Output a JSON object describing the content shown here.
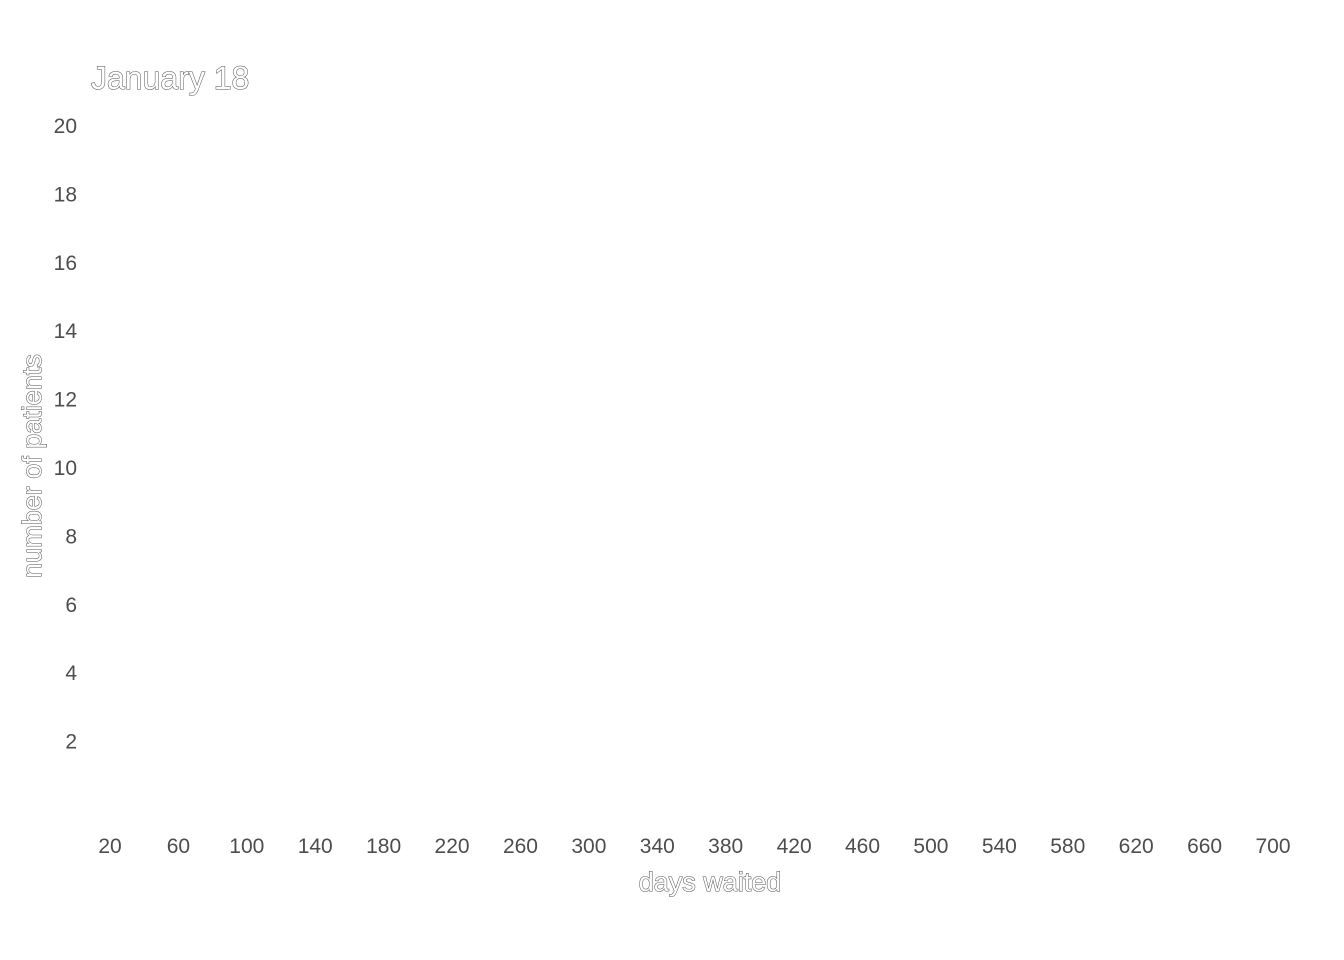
{
  "chart_data": {
    "type": "bar",
    "title": "January 18",
    "xlabel": "days waited",
    "ylabel": "number of patients",
    "x_ticks": [
      20,
      60,
      100,
      140,
      180,
      220,
      260,
      300,
      340,
      380,
      420,
      460,
      500,
      540,
      580,
      620,
      660,
      700
    ],
    "y_ticks": [
      2,
      4,
      6,
      8,
      10,
      12,
      14,
      16,
      18,
      20
    ],
    "xlim": [
      20,
      700
    ],
    "ylim": [
      0,
      20
    ],
    "grid": false,
    "series": [
      {
        "values": []
      }
    ]
  }
}
